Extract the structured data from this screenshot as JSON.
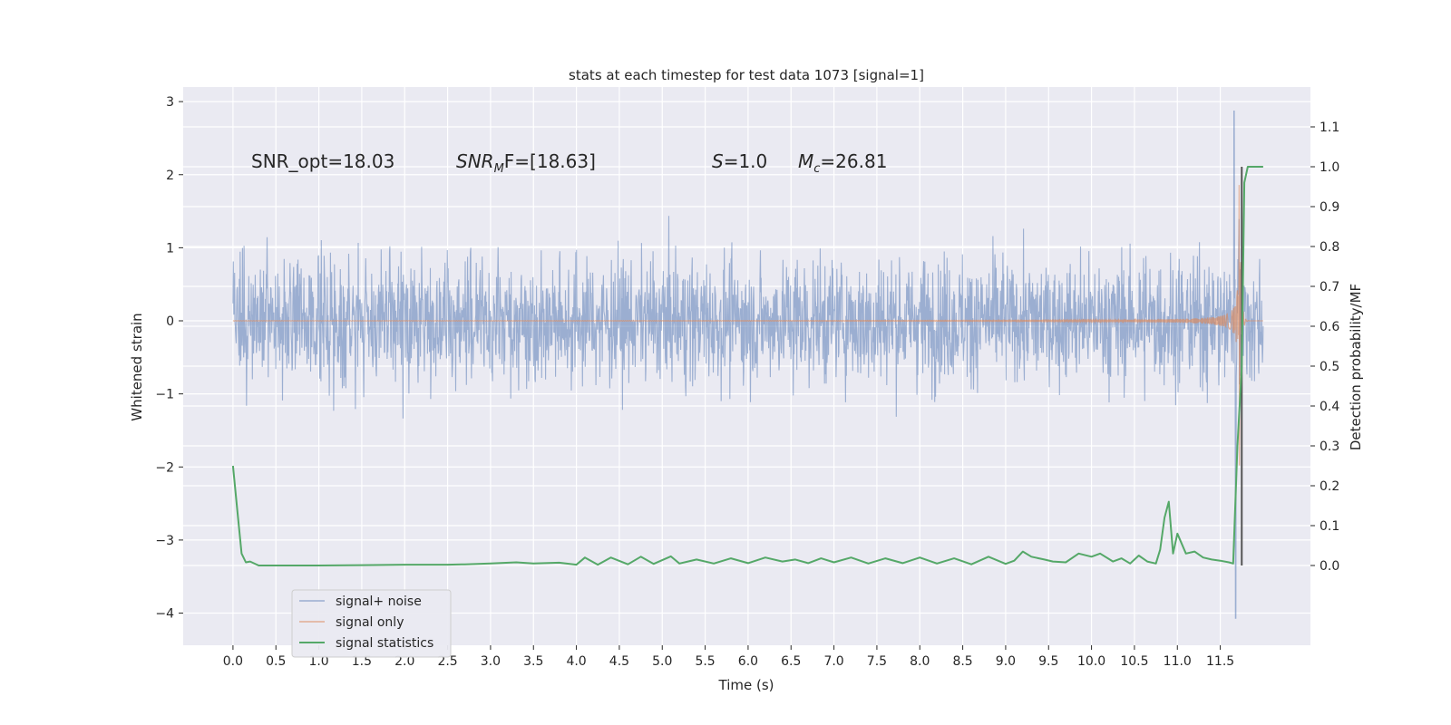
{
  "chart_data": {
    "type": "line",
    "title": "stats at each timestep for test data 1073 [signal=1]",
    "xlabel": "Time (s)",
    "ylabel_left": "Whitened strain",
    "ylabel_right": "Detection probability/MF",
    "xlim": [
      -0.58,
      12.55
    ],
    "ylim_left": [
      -4.44,
      3.2
    ],
    "ylim_right": [
      -0.2,
      1.2
    ],
    "x_ticks": [
      "0.0",
      "0.5",
      "1.0",
      "1.5",
      "2.0",
      "2.5",
      "3.0",
      "3.5",
      "4.0",
      "4.5",
      "5.0",
      "5.5",
      "6.0",
      "6.5",
      "7.0",
      "7.5",
      "8.0",
      "8.5",
      "9.0",
      "9.5",
      "10.0",
      "10.5",
      "11.0",
      "11.5"
    ],
    "y_ticks_left": [
      "3",
      "2",
      "1",
      "0",
      "−1",
      "−2",
      "−3",
      "−4"
    ],
    "y_ticks_right": [
      "1.1",
      "1.0",
      "0.9",
      "0.8",
      "0.7",
      "0.6",
      "0.5",
      "0.4",
      "0.3",
      "0.2",
      "0.1",
      "0.0"
    ],
    "grid": true,
    "legend_position": "lower-left",
    "colors": {
      "noise": "#4c72b0",
      "signal": "#dd8452",
      "stats": "#55a868",
      "marker": "#555555",
      "background": "#eaeaf2"
    },
    "annotations": {
      "snr_opt": "SNR_opt=18.03",
      "snr_mf_main": "SNR",
      "snr_mf_sub": "M",
      "snr_mf_rest": "F=[18.63]",
      "s_main": "S",
      "s_rest": "=1.0",
      "mc_main": "M",
      "mc_sub": "c",
      "mc_rest": "=26.81"
    },
    "series": [
      {
        "name": "signal+ noise",
        "axis": "left",
        "kind": "noise_envelope",
        "duration": 12.0,
        "typical_peak": 1.1,
        "max_value": 2.87,
        "min_value": -4.07
      },
      {
        "name": "signal only",
        "axis": "left",
        "kind": "chirp",
        "merger_time": 11.72,
        "peak_amplitude": 2.3,
        "end_time": 12.0
      },
      {
        "name": "signal statistics",
        "axis": "right",
        "kind": "line",
        "x": [
          0.0,
          0.05,
          0.1,
          0.15,
          0.2,
          0.3,
          0.4,
          0.5,
          0.6,
          0.8,
          1.0,
          1.5,
          2.0,
          2.5,
          2.7,
          3.0,
          3.3,
          3.5,
          3.8,
          4.0,
          4.1,
          4.25,
          4.4,
          4.6,
          4.75,
          4.9,
          5.1,
          5.2,
          5.4,
          5.6,
          5.8,
          6.0,
          6.2,
          6.4,
          6.55,
          6.7,
          6.85,
          7.0,
          7.2,
          7.4,
          7.6,
          7.8,
          8.0,
          8.2,
          8.4,
          8.6,
          8.8,
          9.0,
          9.1,
          9.2,
          9.3,
          9.45,
          9.55,
          9.7,
          9.85,
          10.0,
          10.1,
          10.25,
          10.35,
          10.45,
          10.55,
          10.65,
          10.75,
          10.8,
          10.85,
          10.9,
          10.95,
          11.0,
          11.1,
          11.2,
          11.3,
          11.4,
          11.5,
          11.6,
          11.65,
          11.7,
          11.75,
          11.78,
          11.82,
          11.85,
          11.9,
          12.0
        ],
        "y": [
          0.25,
          0.14,
          0.03,
          0.008,
          0.01,
          0.0,
          0.0,
          0.0,
          0.0,
          0.0,
          0.0,
          0.001,
          0.002,
          0.002,
          0.003,
          0.005,
          0.008,
          0.005,
          0.007,
          0.002,
          0.02,
          0.002,
          0.02,
          0.003,
          0.022,
          0.004,
          0.023,
          0.005,
          0.015,
          0.005,
          0.018,
          0.006,
          0.02,
          0.01,
          0.015,
          0.006,
          0.018,
          0.008,
          0.02,
          0.005,
          0.018,
          0.006,
          0.02,
          0.005,
          0.018,
          0.003,
          0.022,
          0.004,
          0.012,
          0.035,
          0.022,
          0.015,
          0.01,
          0.008,
          0.03,
          0.022,
          0.03,
          0.01,
          0.018,
          0.005,
          0.025,
          0.01,
          0.005,
          0.04,
          0.12,
          0.16,
          0.03,
          0.08,
          0.03,
          0.035,
          0.02,
          0.015,
          0.012,
          0.008,
          0.005,
          0.3,
          0.5,
          0.96,
          1.0,
          1.0,
          1.0,
          1.0
        ]
      },
      {
        "name": "detection marker",
        "axis": "right",
        "kind": "vline",
        "x": 11.75,
        "y0": 0.0,
        "y1": 1.0
      }
    ],
    "legend": [
      "signal+ noise",
      "signal only",
      "signal statistics"
    ]
  }
}
